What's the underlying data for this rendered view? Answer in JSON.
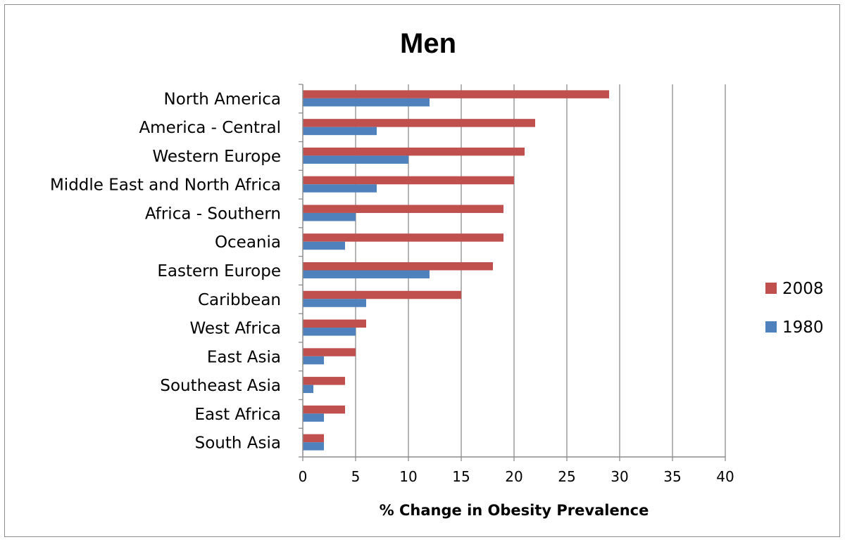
{
  "chart_data": {
    "type": "bar",
    "orientation": "horizontal",
    "title": "Men",
    "xlabel": "% Change in Obesity Prevalence",
    "ylabel": "",
    "xlim": [
      0,
      40
    ],
    "xticks": [
      0,
      5,
      10,
      15,
      20,
      25,
      30,
      35,
      40
    ],
    "grid": true,
    "legend_position": "right",
    "categories": [
      "North America",
      "America - Central",
      "Western Europe",
      "Middle East and North Africa",
      "Africa - Southern",
      "Oceania",
      "Eastern Europe",
      "Caribbean",
      "West Africa",
      "East Asia",
      "Southeast Asia",
      "East Africa",
      "South Asia"
    ],
    "series": [
      {
        "name": "2008",
        "color": "#C0504D",
        "values": [
          29,
          22,
          21,
          20,
          19,
          19,
          18,
          15,
          6,
          5,
          4,
          4,
          2
        ]
      },
      {
        "name": "1980",
        "color": "#4F81BD",
        "values": [
          12,
          7,
          10,
          7,
          5,
          4,
          12,
          6,
          5,
          2,
          1,
          2,
          2
        ]
      }
    ]
  }
}
